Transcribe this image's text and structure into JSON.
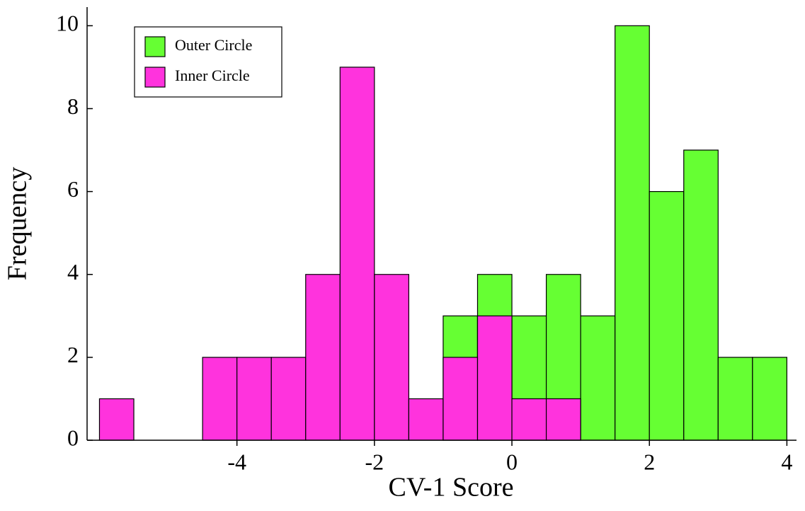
{
  "chart_data": {
    "type": "histogram",
    "xlabel": "CV-1 Score",
    "ylabel": "Frequency",
    "bins": [
      -6,
      -5.5,
      -5,
      -4.5,
      -4,
      -3.5,
      -3,
      -2.5,
      -2,
      -1.5,
      -1,
      -0.5,
      0,
      0.5,
      1,
      1.5,
      2,
      2.5,
      3,
      3.5,
      4
    ],
    "series": [
      {
        "name": "Outer Circle",
        "color": "#66ff33",
        "values": [
          0,
          0,
          0,
          0,
          0,
          0,
          0,
          0,
          0,
          0,
          3,
          4,
          3,
          4,
          3,
          10,
          6,
          7,
          2,
          2
        ]
      },
      {
        "name": "Inner Circle",
        "color": "#ff33dd",
        "values": [
          1,
          0,
          0,
          2,
          2,
          2,
          4,
          9,
          4,
          1,
          2,
          3,
          1,
          1,
          0,
          0,
          0,
          0,
          0,
          0
        ]
      }
    ],
    "xlim": [
      -6.18,
      4.14
    ],
    "ylim": [
      0,
      10.45
    ],
    "xticks": [
      -4,
      -2,
      0,
      2,
      4
    ],
    "yticks": [
      0,
      2,
      4,
      6,
      8,
      10
    ],
    "legend": "upper left"
  }
}
